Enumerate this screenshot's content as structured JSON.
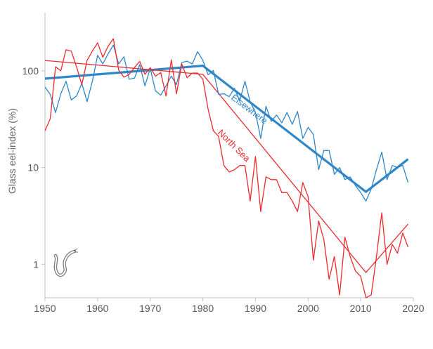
{
  "chart_data": {
    "type": "line",
    "ylabel": "Glass eel-index  (%)",
    "y_scale": "log",
    "xlim": [
      1950,
      2020
    ],
    "ylim": [
      0.45,
      400
    ],
    "x_ticks": [
      {
        "value": 1950,
        "label": "1950"
      },
      {
        "value": 1960,
        "label": "1960"
      },
      {
        "value": 1970,
        "label": "1970"
      },
      {
        "value": 1980,
        "label": "1980"
      },
      {
        "value": 1990,
        "label": "1990"
      },
      {
        "value": 2000,
        "label": "2000"
      },
      {
        "value": 2010,
        "label": "2010"
      },
      {
        "value": 2020,
        "label": "2020"
      }
    ],
    "y_ticks": [
      {
        "value": 1,
        "label": "1"
      },
      {
        "value": 10,
        "label": "10"
      },
      {
        "value": 100,
        "label": "100"
      }
    ],
    "grid": false,
    "series": [
      {
        "name": "Elsewhere",
        "color": "#2f86c8",
        "x": [
          1950,
          1951,
          1952,
          1953,
          1954,
          1955,
          1956,
          1957,
          1958,
          1959,
          1960,
          1961,
          1962,
          1963,
          1964,
          1965,
          1966,
          1967,
          1968,
          1969,
          1970,
          1971,
          1972,
          1973,
          1974,
          1975,
          1976,
          1977,
          1978,
          1979,
          1980,
          1981,
          1982,
          1983,
          1984,
          1985,
          1986,
          1987,
          1988,
          1989,
          1990,
          1991,
          1992,
          1993,
          1994,
          1995,
          1996,
          1997,
          1998,
          1999,
          2000,
          2001,
          2002,
          2003,
          2004,
          2005,
          2006,
          2007,
          2008,
          2009,
          2010,
          2011,
          2012,
          2013,
          2014,
          2015,
          2016,
          2017,
          2018,
          2019
        ],
        "values": [
          68,
          57,
          37,
          58,
          78,
          50,
          55,
          74,
          48,
          78,
          145,
          118,
          150,
          185,
          118,
          140,
          82,
          84,
          116,
          70,
          106,
          62,
          56,
          70,
          88,
          72,
          122,
          126,
          118,
          158,
          128,
          91,
          101,
          57,
          58,
          54,
          66,
          49,
          78,
          48,
          37,
          20,
          43,
          30,
          35,
          29,
          37,
          28,
          38,
          20,
          26,
          22,
          9.5,
          15,
          15,
          8.5,
          10,
          7.5,
          8,
          6.5,
          5.5,
          4.5,
          6,
          9.5,
          14.5,
          7.5,
          10.5,
          10,
          10.5,
          7
        ]
      },
      {
        "name": "North Sea",
        "color": "#ee2a2e",
        "x": [
          1950,
          1951,
          1952,
          1953,
          1954,
          1955,
          1956,
          1957,
          1958,
          1959,
          1960,
          1961,
          1962,
          1963,
          1964,
          1965,
          1966,
          1967,
          1968,
          1969,
          1970,
          1971,
          1972,
          1973,
          1974,
          1975,
          1976,
          1977,
          1978,
          1979,
          1980,
          1981,
          1982,
          1983,
          1984,
          1985,
          1986,
          1987,
          1988,
          1989,
          1990,
          1991,
          1992,
          1993,
          1994,
          1995,
          1996,
          1997,
          1998,
          1999,
          2000,
          2001,
          2002,
          2003,
          2004,
          2005,
          2006,
          2007,
          2008,
          2009,
          2010,
          2011,
          2012,
          2013,
          2014,
          2015,
          2016,
          2017,
          2018,
          2019
        ],
        "values": [
          24,
          32,
          110,
          100,
          165,
          160,
          110,
          72,
          128,
          160,
          195,
          138,
          180,
          215,
          102,
          86,
          92,
          108,
          125,
          92,
          108,
          88,
          96,
          55,
          130,
          58,
          118,
          85,
          95,
          95,
          82,
          40,
          24,
          21,
          10.5,
          9,
          9.5,
          10.5,
          10.5,
          4.5,
          13,
          3.5,
          8,
          7.5,
          7.5,
          5.5,
          5.5,
          4.5,
          3.5,
          7,
          5,
          1.1,
          2.8,
          1.8,
          0.7,
          1.2,
          0.48,
          1.9,
          1.2,
          0.85,
          0.75,
          0.45,
          0.48,
          1.2,
          3.4,
          1.0,
          1.6,
          1.3,
          2.1,
          1.5
        ]
      }
    ],
    "trends": [
      {
        "series": "Elsewhere",
        "color": "#2f86c8",
        "x": [
          1950,
          1980,
          2011,
          2019
        ],
        "values": [
          83,
          113,
          5.6,
          12.2
        ]
      },
      {
        "series": "North Sea",
        "color": "#ee2a2e",
        "x": [
          1950,
          1980,
          2011,
          2019
        ],
        "values": [
          128,
          92,
          0.82,
          2.6
        ]
      }
    ],
    "annotations": [
      {
        "text": "Elsewhere",
        "series": "Elsewhere",
        "x": 1988.5,
        "y": 38,
        "angle": 37
      },
      {
        "text": "North Sea",
        "series": "North Sea",
        "x": 1985.5,
        "y": 16,
        "angle": 45
      }
    ],
    "icon": "eel-icon"
  }
}
